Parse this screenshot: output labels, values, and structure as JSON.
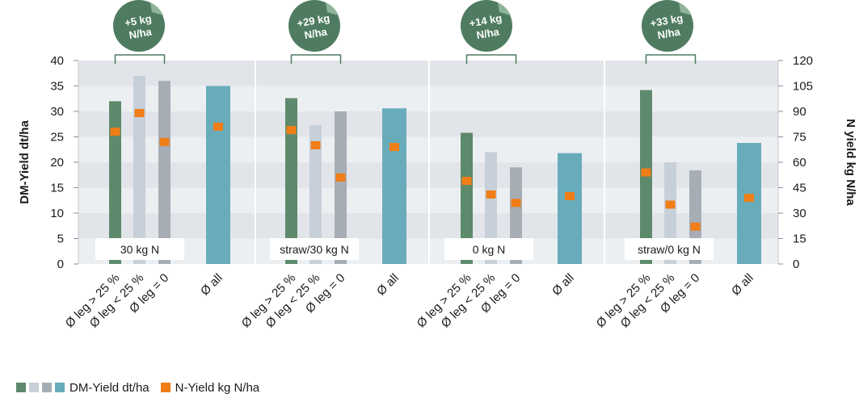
{
  "chart_data": {
    "type": "bar",
    "ylabel_left": "DM-Yield dt/ha",
    "ylabel_right": "N yield kg N/ha",
    "ylim_left": [
      0,
      40
    ],
    "ylim_right": [
      0,
      120
    ],
    "yticks_left": [
      "0",
      "5",
      "10",
      "15",
      "20",
      "25",
      "30",
      "35",
      "40"
    ],
    "yticks_right": [
      "0",
      "15",
      "30",
      "45",
      "60",
      "75",
      "90",
      "105",
      "120"
    ],
    "category_labels": [
      "Ø leg > 25 %",
      "Ø leg < 25 %",
      "Ø leg = 0",
      "Ø all"
    ],
    "groups": [
      {
        "label": "30 kg N",
        "badge_line1": "+5 kg",
        "badge_line2": "N/ha",
        "dm_yield": [
          32,
          37,
          36,
          35
        ],
        "n_yield": [
          78,
          89,
          72,
          81
        ]
      },
      {
        "label": "straw/30 kg N",
        "badge_line1": "+29 kg",
        "badge_line2": "N/ha",
        "dm_yield": [
          32.6,
          27.3,
          30,
          30.6
        ],
        "n_yield": [
          79,
          70,
          51,
          69
        ]
      },
      {
        "label": "0 kg N",
        "badge_line1": "+14 kg",
        "badge_line2": "N/ha",
        "dm_yield": [
          25.8,
          22,
          19,
          21.8
        ],
        "n_yield": [
          49,
          41,
          36,
          40
        ]
      },
      {
        "label": "straw/0 kg N",
        "badge_line1": "+33 kg",
        "badge_line2": "N/ha",
        "dm_yield": [
          34.2,
          20,
          18.4,
          23.8
        ],
        "n_yield": [
          54,
          35,
          22,
          39
        ]
      }
    ],
    "legend": {
      "dm_label": "DM-Yield dt/ha",
      "n_label": "N-Yield kg N/ha"
    },
    "colors": {
      "leg_high": "#5d8a6c",
      "leg_low": "#c7d0d9",
      "leg_zero": "#a6adb5",
      "all": "#68acbb",
      "n_marker": "#f07d16",
      "badge": "#4f7c60",
      "band_light": "#eceff2",
      "band_dark": "#e1e5e9"
    }
  }
}
